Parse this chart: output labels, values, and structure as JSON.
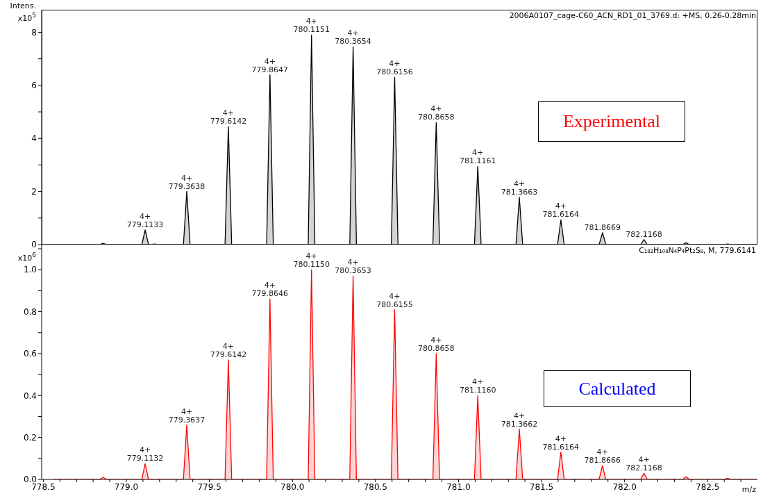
{
  "chart_data": [
    {
      "type": "area",
      "ylabel": "Intens.\nx10$^{5}$",
      "series": [
        {
          "color": "#000000",
          "x": [
            778.49,
            778.84,
            778.86,
            778.88,
            779.0933,
            779.1133,
            779.1333,
            779.15,
            779.17,
            779.19,
            779.3438,
            779.3638,
            779.3838,
            779.5942,
            779.6142,
            779.6342,
            779.8447,
            779.8647,
            779.8847,
            780.0951,
            780.1151,
            780.1351,
            780.3454,
            780.3654,
            780.3854,
            780.5956,
            780.6156,
            780.6356,
            780.8458,
            780.8658,
            780.8858,
            781.0961,
            781.1161,
            781.1361,
            781.3463,
            781.3663,
            781.3863,
            781.5964,
            781.6164,
            781.6364,
            781.8469,
            781.8669,
            781.8869,
            782.0968,
            782.1168,
            782.1368,
            782.35,
            782.37,
            782.39,
            782.6,
            782.62,
            782.64,
            782.8
          ],
          "values": [
            0,
            0,
            0.05,
            0,
            0,
            0.55,
            0,
            0,
            0.02,
            0,
            0,
            2.0,
            0,
            0,
            4.45,
            0,
            0,
            6.4,
            0,
            0,
            7.9,
            0,
            0,
            7.45,
            0,
            0,
            6.3,
            0,
            0,
            4.6,
            0,
            0,
            2.95,
            0,
            0,
            1.78,
            0,
            0,
            0.93,
            0,
            0,
            0.45,
            0,
            0,
            0.19,
            0,
            0,
            0.07,
            0,
            0,
            0.02,
            0,
            0
          ]
        }
      ],
      "xlim": [
        778.49,
        782.8
      ],
      "ylim": [
        0,
        8.85
      ],
      "yticks": [
        0,
        {
          "value": 1,
          "label": null
        },
        2,
        {
          "value": 3,
          "label": null
        },
        4,
        {
          "value": 5,
          "label": null
        },
        6,
        {
          "value": 7,
          "label": null
        },
        8
      ],
      "tick_labels": "y",
      "annotations": [
        "2006A0107_cage-C60_ACN_RD1_01_3769.d: +MS, 0.26-0.28min",
        "Experimental",
        {
          "text": "4+\n779.1133",
          "x": 779.1133,
          "y": 0.55
        },
        {
          "text": "4+\n779.3638",
          "x": 779.3638,
          "y": 2.0
        },
        {
          "text": "4+\n779.6142",
          "x": 779.6142,
          "y": 4.45
        },
        {
          "text": "4+\n779.8647",
          "x": 779.8647,
          "y": 6.4
        },
        {
          "text": "4+\n780.1151",
          "x": 780.1151,
          "y": 7.9
        },
        {
          "text": "4+\n780.3654",
          "x": 780.3654,
          "y": 7.45
        },
        {
          "text": "4+\n780.6156",
          "x": 780.6156,
          "y": 6.3
        },
        {
          "text": "4+\n780.8658",
          "x": 780.8658,
          "y": 4.6
        },
        {
          "text": "4+\n781.1161",
          "x": 781.1161,
          "y": 2.95
        },
        {
          "text": "4+\n781.3663",
          "x": 781.3663,
          "y": 1.78
        },
        {
          "text": "4+\n781.6164",
          "x": 781.6164,
          "y": 0.93
        },
        {
          "text": "781.8669",
          "x": 781.8669,
          "y": 0.45
        },
        {
          "text": "782.1168",
          "x": 782.1168,
          "y": 0.19
        }
      ]
    },
    {
      "type": "area",
      "ylabel": "x10$^{6}$",
      "xlabel": "m/z",
      "series": [
        {
          "color": "#ff0000",
          "x": [
            778.56,
            778.84,
            778.86,
            778.88,
            779.0932,
            779.1132,
            779.1332,
            779.3437,
            779.3637,
            779.3837,
            779.5942,
            779.6142,
            779.6342,
            779.8446,
            779.8646,
            779.8846,
            780.095,
            780.115,
            780.135,
            780.3453,
            780.3653,
            780.3853,
            780.5955,
            780.6155,
            780.6355,
            780.8458,
            780.8658,
            780.8858,
            781.096,
            781.116,
            781.136,
            781.3462,
            781.3662,
            781.3862,
            781.5964,
            781.6164,
            781.6364,
            781.8466,
            781.8666,
            781.8866,
            782.0968,
            782.1168,
            782.1368,
            782.35,
            782.37,
            782.39,
            782.6,
            782.62,
            782.64,
            782.8
          ],
          "values": [
            0,
            0,
            0.01,
            0,
            0,
            0.075,
            0,
            0,
            0.26,
            0,
            0,
            0.57,
            0,
            0,
            0.86,
            0,
            0,
            1.0,
            0,
            0,
            0.97,
            0,
            0,
            0.81,
            0,
            0,
            0.6,
            0,
            0,
            0.4,
            0,
            0,
            0.24,
            0,
            0,
            0.13,
            0,
            0,
            0.066,
            0,
            0,
            0.03,
            0,
            0,
            0.012,
            0,
            0,
            0.005,
            0,
            0
          ]
        }
      ],
      "xlim": [
        778.49,
        782.8
      ],
      "ylim": [
        0,
        1.12
      ],
      "xticks": [
        {
          "value": 778.5,
          "label": "778.5"
        },
        {
          "value": 778.6,
          "label": null
        },
        {
          "value": 778.7,
          "label": null
        },
        {
          "value": 778.8,
          "label": null
        },
        {
          "value": 778.9,
          "label": null
        },
        {
          "value": 779.0,
          "label": "779.0"
        },
        {
          "value": 779.1,
          "label": null
        },
        {
          "value": 779.2,
          "label": null
        },
        {
          "value": 779.3,
          "label": null
        },
        {
          "value": 779.4,
          "label": null
        },
        {
          "value": 779.5,
          "label": "779.5"
        },
        {
          "value": 779.6,
          "label": null
        },
        {
          "value": 779.7,
          "label": null
        },
        {
          "value": 779.8,
          "label": null
        },
        {
          "value": 779.9,
          "label": null
        },
        {
          "value": 780.0,
          "label": "780.0"
        },
        {
          "value": 780.1,
          "label": null
        },
        {
          "value": 780.2,
          "label": null
        },
        {
          "value": 780.3,
          "label": null
        },
        {
          "value": 780.4,
          "label": null
        },
        {
          "value": 780.5,
          "label": "780.5"
        },
        {
          "value": 780.6,
          "label": null
        },
        {
          "value": 780.7,
          "label": null
        },
        {
          "value": 780.8,
          "label": null
        },
        {
          "value": 780.9,
          "label": null
        },
        {
          "value": 781.0,
          "label": "781.0"
        },
        {
          "value": 781.1,
          "label": null
        },
        {
          "value": 781.2,
          "label": null
        },
        {
          "value": 781.3,
          "label": null
        },
        {
          "value": 781.4,
          "label": null
        },
        {
          "value": 781.5,
          "label": "781.5"
        },
        {
          "value": 781.6,
          "label": null
        },
        {
          "value": 781.7,
          "label": null
        },
        {
          "value": 781.8,
          "label": null
        },
        {
          "value": 781.9,
          "label": null
        },
        {
          "value": 782.0,
          "label": "782.0"
        },
        {
          "value": 782.1,
          "label": null
        },
        {
          "value": 782.2,
          "label": null
        },
        {
          "value": 782.3,
          "label": null
        },
        {
          "value": 782.4,
          "label": null
        },
        {
          "value": 782.5,
          "label": "782.5"
        },
        {
          "value": 782.6,
          "label": null
        },
        {
          "value": 782.7,
          "label": null
        }
      ],
      "yticks": [
        {
          "value": 0,
          "label": "0.0"
        },
        {
          "value": 0.1,
          "label": null
        },
        {
          "value": 0.2,
          "label": "0.2"
        },
        {
          "value": 0.3,
          "label": null
        },
        {
          "value": 0.4,
          "label": "0.4"
        },
        {
          "value": 0.5,
          "label": null
        },
        {
          "value": 0.6,
          "label": "0.6"
        },
        {
          "value": 0.7,
          "label": null
        },
        {
          "value": 0.8,
          "label": "0.8"
        },
        {
          "value": 0.9,
          "label": null
        },
        {
          "value": 1.0,
          "label": "1.0"
        },
        {
          "value": 1.1,
          "label": null
        }
      ],
      "annotations": [
        "C₁₈₂H₁₀₈N₄P₄Pt₂S₈, M, 779.6141",
        "Calculated",
        {
          "text": "4+\n779.1132",
          "x": 779.1132,
          "y": 0.075
        },
        {
          "text": "4+\n779.3637",
          "x": 779.3637,
          "y": 0.26
        },
        {
          "text": "4+\n779.6142",
          "x": 779.6142,
          "y": 0.57
        },
        {
          "text": "4+\n779.8646",
          "x": 779.8646,
          "y": 0.86
        },
        {
          "text": "4+\n780.1150",
          "x": 780.115,
          "y": 1.0
        },
        {
          "text": "4+\n780.3653",
          "x": 780.3653,
          "y": 0.97
        },
        {
          "text": "4+\n780.6155",
          "x": 780.6155,
          "y": 0.81
        },
        {
          "text": "4+\n780.8658",
          "x": 780.8658,
          "y": 0.6
        },
        {
          "text": "4+\n781.1160",
          "x": 781.116,
          "y": 0.4
        },
        {
          "text": "4+\n781.3662",
          "x": 781.3662,
          "y": 0.24
        },
        {
          "text": "4+\n781.6164",
          "x": 781.6164,
          "y": 0.13
        },
        {
          "text": "4+\n781.8666",
          "x": 781.8666,
          "y": 0.066
        },
        {
          "text": "4+\n782.1168",
          "x": 782.1168,
          "y": 0.03
        }
      ]
    }
  ]
}
